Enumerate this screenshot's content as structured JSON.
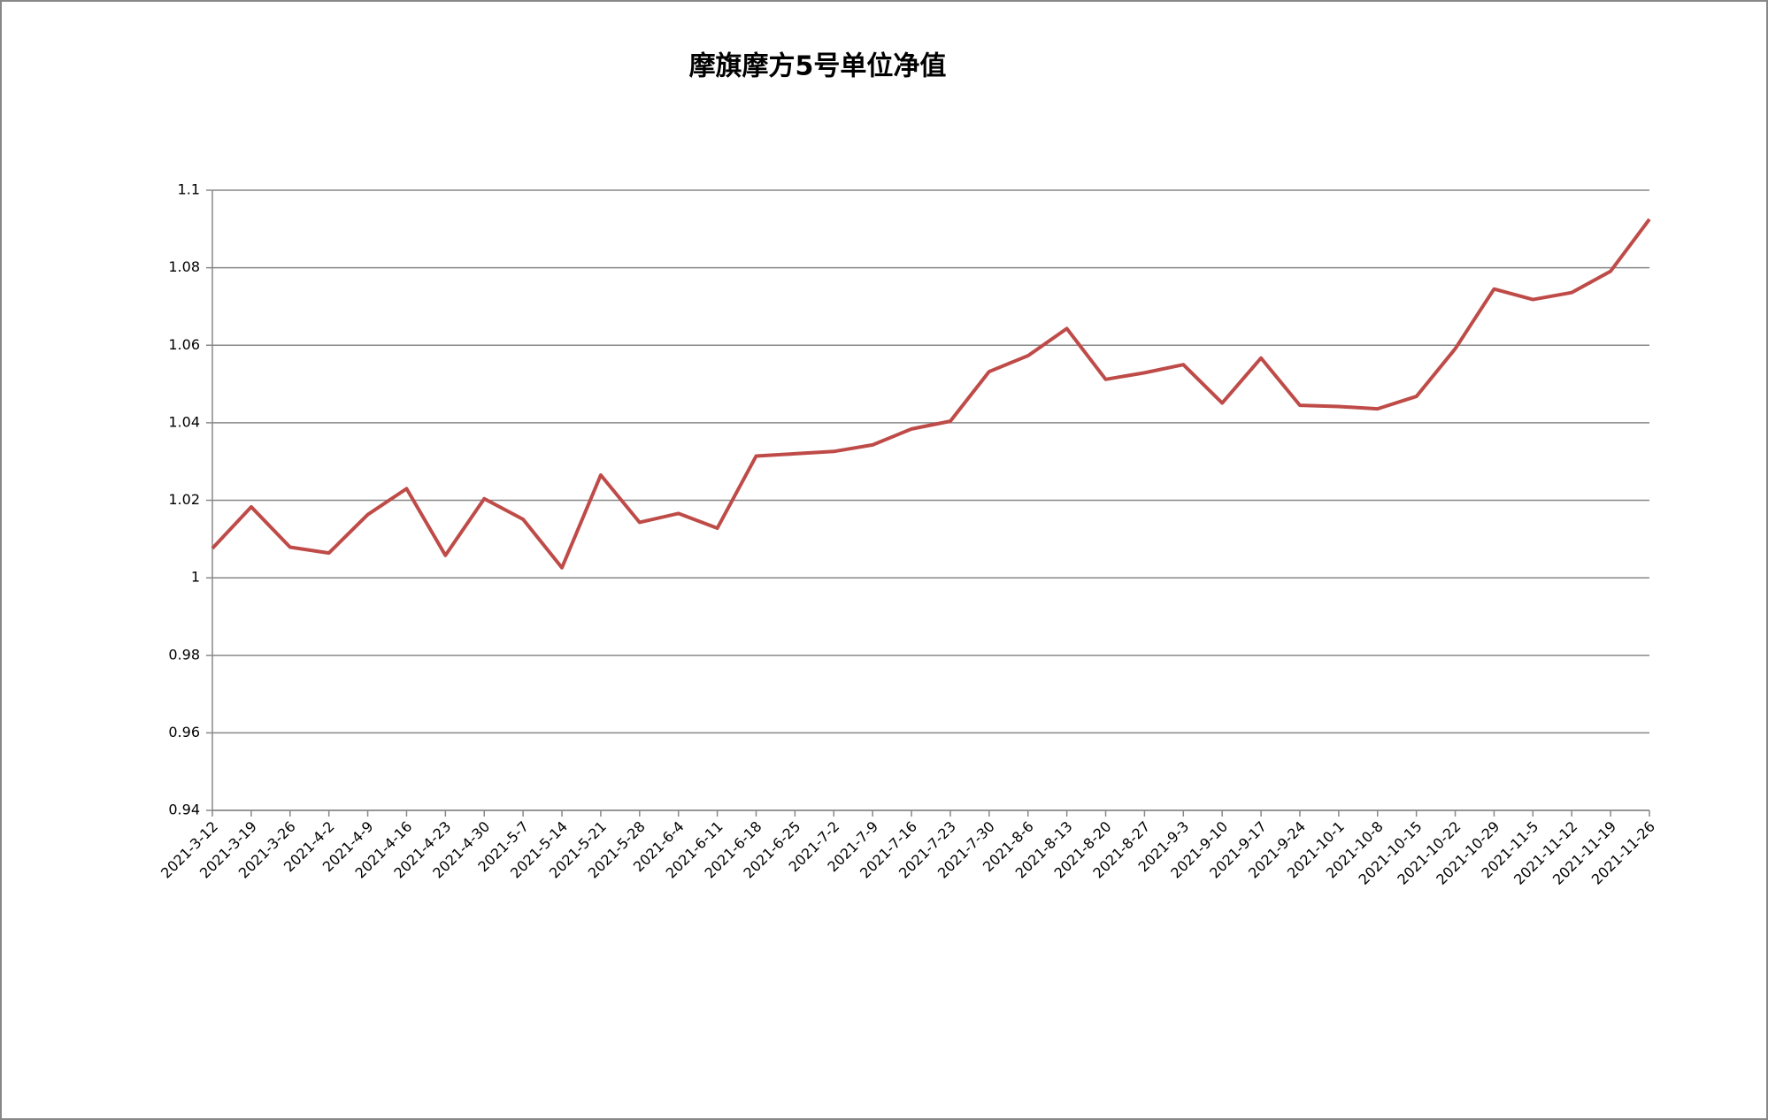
{
  "chart_data": {
    "type": "line",
    "title": "摩旗摩方5号单位净值",
    "categories": [
      "2021-3-12",
      "2021-3-19",
      "2021-3-26",
      "2021-4-2",
      "2021-4-9",
      "2021-4-16",
      "2021-4-23",
      "2021-4-30",
      "2021-5-7",
      "2021-5-14",
      "2021-5-21",
      "2021-5-28",
      "2021-6-4",
      "2021-6-11",
      "2021-6-18",
      "2021-6-25",
      "2021-7-2",
      "2021-7-9",
      "2021-7-16",
      "2021-7-23",
      "2021-7-30",
      "2021-8-6",
      "2021-8-13",
      "2021-8-20",
      "2021-8-27",
      "2021-9-3",
      "2021-9-10",
      "2021-9-17",
      "2021-9-24",
      "2021-10-1",
      "2021-10-8",
      "2021-10-15",
      "2021-10-22",
      "2021-10-29",
      "2021-11-5",
      "2021-11-12",
      "2021-11-19",
      "2021-11-26"
    ],
    "values": [
      1.0076,
      1.0183,
      1.0079,
      1.0064,
      1.0163,
      1.023,
      1.0058,
      1.0204,
      1.0151,
      1.0026,
      1.0265,
      1.0143,
      1.0166,
      1.0128,
      1.0314,
      1.032,
      1.0326,
      1.0343,
      1.0384,
      1.0404,
      1.0532,
      1.0573,
      1.0643,
      1.0512,
      1.0529,
      1.055,
      1.0451,
      1.0567,
      1.0445,
      1.0442,
      1.0436,
      1.0468,
      1.0591,
      1.0745,
      1.0718,
      1.0736,
      1.0791,
      1.0925
    ],
    "color": "#be4b48",
    "ylim": [
      0.94,
      1.1
    ],
    "yticks": [
      0.94,
      0.96,
      0.98,
      1,
      1.02,
      1.04,
      1.06,
      1.08,
      1.1
    ],
    "grid": true
  }
}
